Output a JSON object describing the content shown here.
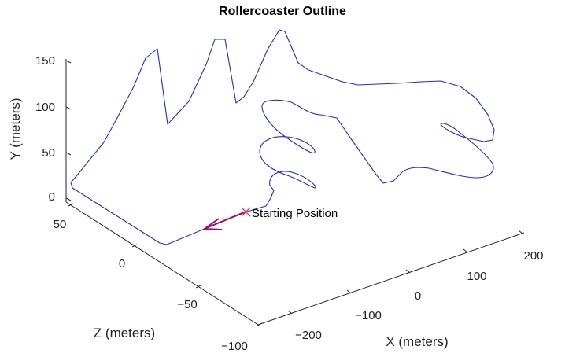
{
  "chart_data": {
    "type": "line3d",
    "title": "Rollercoaster Outline",
    "xlabel": "X (meters)",
    "ylabel": "Y (meters)",
    "zlabel": "Z (meters)",
    "x_ticks": [
      "−200",
      "−100",
      "0",
      "100",
      "200"
    ],
    "y_ticks": [
      "0",
      "50",
      "100",
      "150"
    ],
    "z_ticks": [
      "50",
      "0",
      "−50",
      "−100"
    ],
    "annotation": "Starting Position",
    "colors": {
      "track": "#1f2bd6",
      "marker": "#e0404a",
      "arrow": "#a0106a",
      "axis": "#262626"
    }
  }
}
